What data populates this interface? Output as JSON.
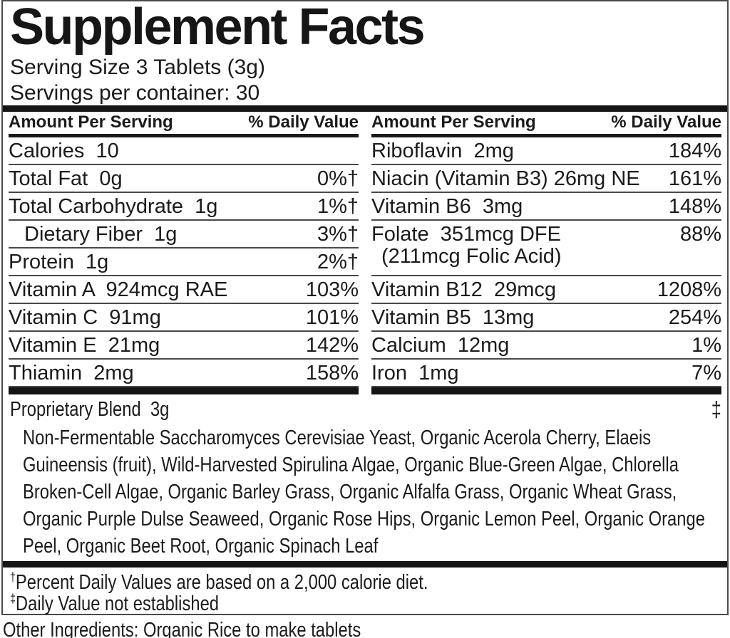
{
  "colors": {
    "background": "#ffffff",
    "text": "#1b1b1b",
    "heavy_bar": "#141414",
    "thin_rule": "#494949",
    "panel_border": "#4a4a4a"
  },
  "panel": {
    "title": "Supplement Facts",
    "serving_size": "Serving Size 3 Tablets (3g)",
    "servings_per_container": "Servings per container: 30",
    "columns": {
      "header": {
        "amount": "Amount Per Serving",
        "daily_value": "% Daily Value"
      },
      "left": {
        "rows": [
          {
            "name": "Calories  10",
            "dv": ""
          },
          {
            "name": "Total Fat  0g",
            "dv": "0%†"
          },
          {
            "name": "Total Carbohydrate  1g",
            "dv": "1%†"
          },
          {
            "name": "Dietary Fiber  1g",
            "dv": "3%†"
          },
          {
            "name": "Protein  1g",
            "dv": "2%†"
          },
          {
            "name": "Vitamin A  924mcg RAE",
            "dv": "103%"
          },
          {
            "name": "Vitamin C  91mg",
            "dv": "101%"
          },
          {
            "name": "Vitamin E  21mg",
            "dv": "142%"
          },
          {
            "name": "Thiamin  2mg",
            "dv": "158%"
          }
        ]
      },
      "right": {
        "rows": [
          {
            "name": "Riboflavin  2mg",
            "dv": "184%"
          },
          {
            "name": "Niacin (Vitamin B3) 26mg NE",
            "dv": "161%"
          },
          {
            "name": "Vitamin B6  3mg",
            "dv": "148%"
          },
          {
            "name": "Folate  351mcg DFE",
            "name2": "(211mcg Folic Acid)",
            "dv": "88%"
          },
          {
            "name": "Vitamin B12  29mcg",
            "dv": "1208%"
          },
          {
            "name": "Vitamin B5  13mg",
            "dv": "254%"
          },
          {
            "name": "Calcium  12mg",
            "dv": "1%"
          },
          {
            "name": "Iron  1mg",
            "dv": "7%"
          }
        ]
      }
    },
    "proprietary_blend": {
      "name": "Proprietary Blend  3g",
      "mark": "‡",
      "ingredients": "Non-Fermentable Saccharomyces Cerevisiae Yeast, Organic Acerola Cherry, Elaeis Guineensis (fruit), Wild-Harvested Spirulina Algae, Organic Blue-Green Algae, Chlorella Broken-Cell Algae, Organic Barley Grass, Organic Alfalfa Grass, Organic Wheat Grass, Organic Purple Dulse Seaweed, Organic Rose Hips, Organic Lemon Peel, Organic Orange Peel, Organic Beet Root, Organic Spinach Leaf"
    },
    "footnotes": [
      {
        "symbol": "†",
        "text": "Percent Daily Values are based on a 2,000 calorie diet."
      },
      {
        "symbol": "‡",
        "text": "Daily Value not established"
      }
    ]
  },
  "other_ingredients": "Other Ingredients: Organic Rice to make tablets"
}
